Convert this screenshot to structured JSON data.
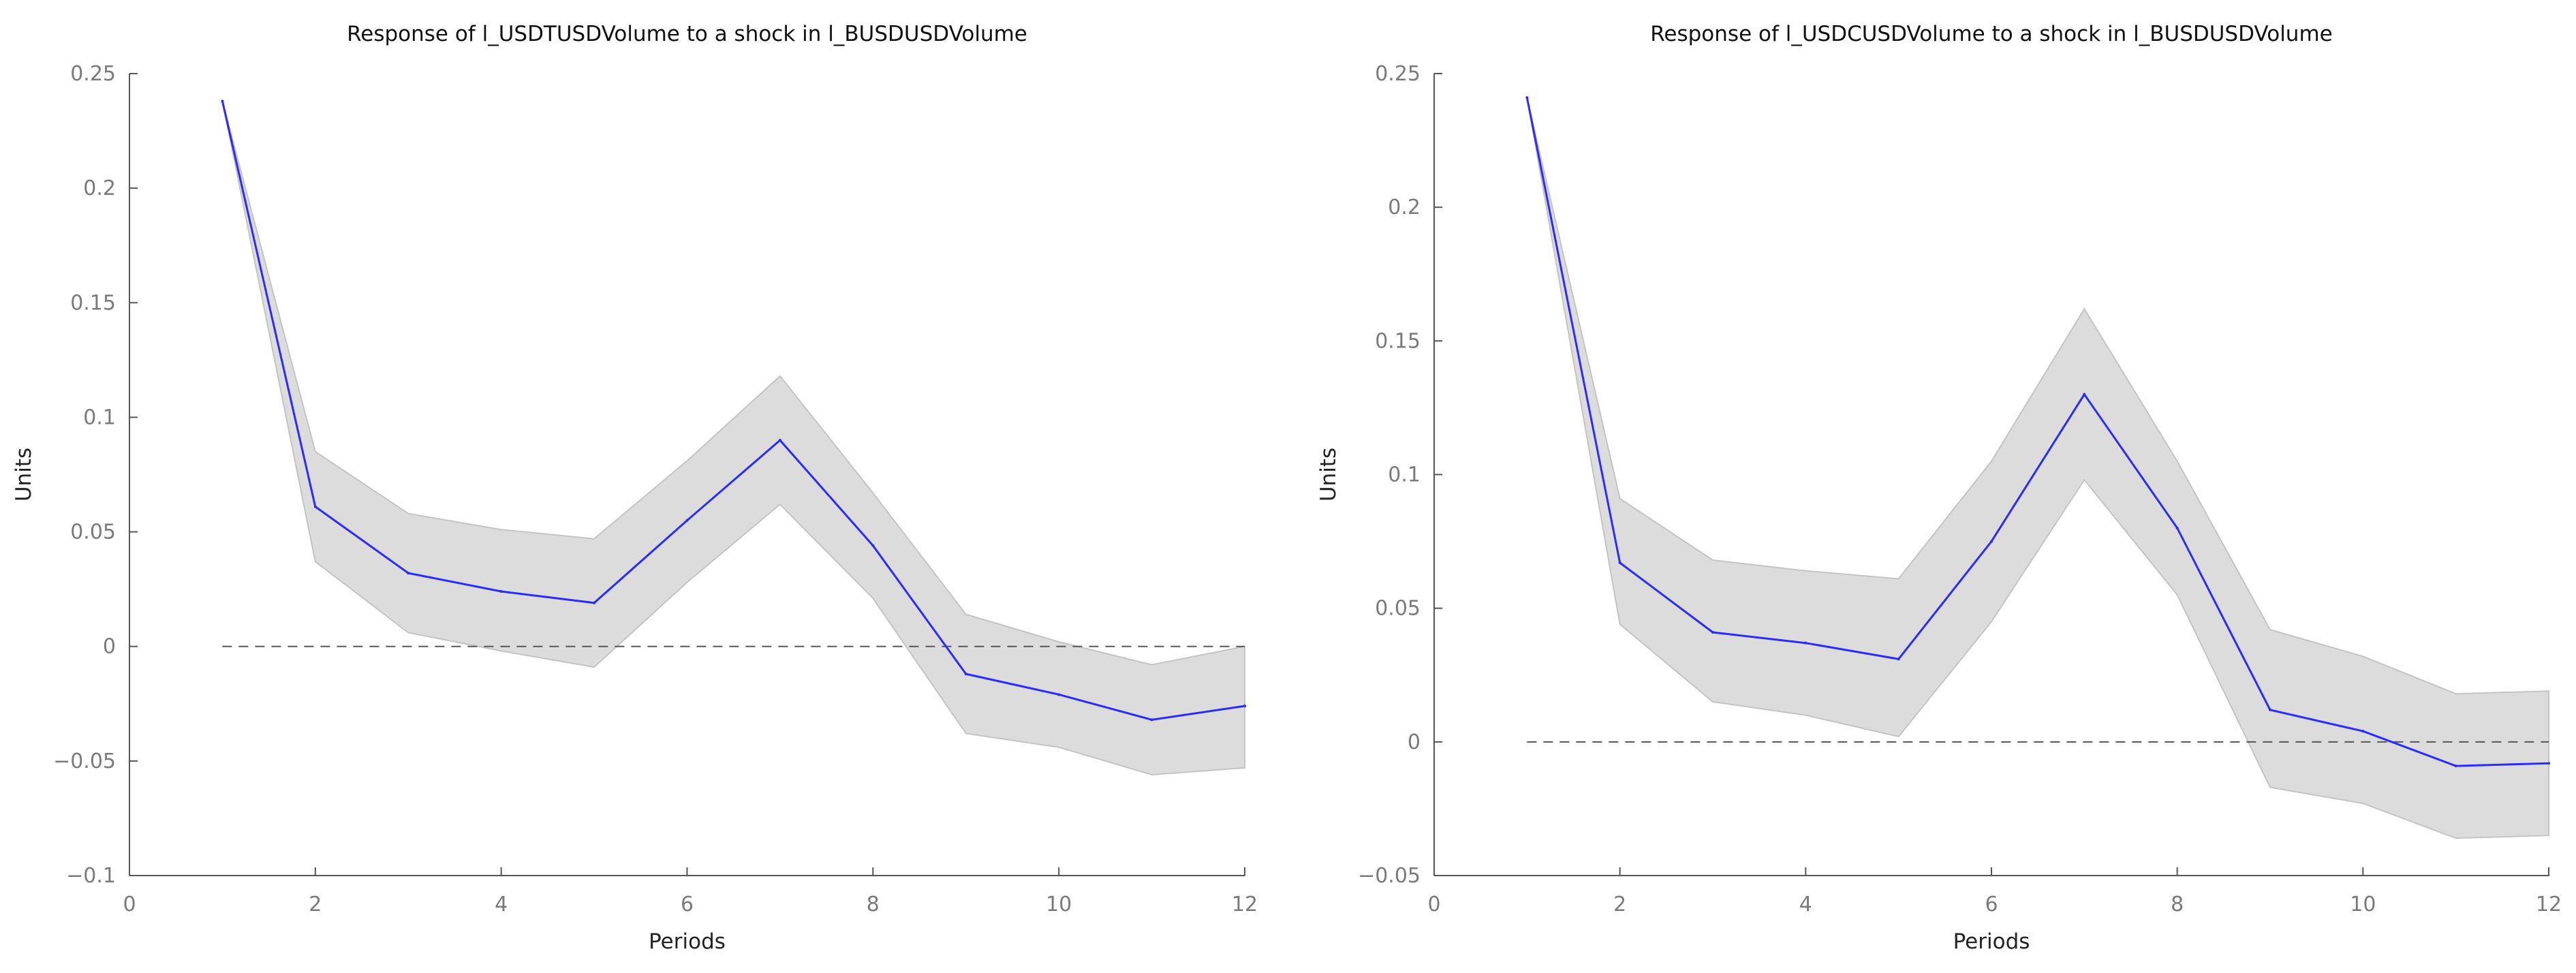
{
  "chart_data": [
    {
      "type": "line",
      "title": "Response of l_USDTUSDVolume to a shock in l_BUSDUSDVolume",
      "xlabel": "Periods",
      "ylabel": "Units",
      "xlim": [
        0,
        12
      ],
      "ylim": [
        -0.1,
        0.25
      ],
      "xticks": [
        0,
        2,
        4,
        6,
        8,
        10,
        12
      ],
      "yticks": [
        -0.1,
        -0.05,
        0,
        0.05,
        0.1,
        0.15,
        0.2,
        0.25
      ],
      "xtick_labels": [
        "0",
        "2",
        "4",
        "6",
        "8",
        "10",
        "12"
      ],
      "ytick_labels": [
        "−0.1",
        "−0.05",
        "0",
        "0.05",
        "0.1",
        "0.15",
        "0.2",
        "0.25"
      ],
      "zero_line": 0,
      "x": [
        1,
        2,
        3,
        4,
        5,
        6,
        7,
        8,
        9,
        10,
        11,
        12
      ],
      "series": [
        {
          "name": "response",
          "color": "#2b2bff",
          "values": [
            0.238,
            0.061,
            0.032,
            0.024,
            0.019,
            0.055,
            0.09,
            0.044,
            -0.012,
            -0.021,
            -0.032,
            -0.026
          ]
        },
        {
          "name": "upper",
          "values": [
            0.238,
            0.085,
            0.058,
            0.051,
            0.047,
            0.081,
            0.118,
            0.067,
            0.014,
            0.002,
            -0.008,
            0.0
          ]
        },
        {
          "name": "lower",
          "values": [
            0.238,
            0.037,
            0.006,
            -0.002,
            -0.009,
            0.028,
            0.062,
            0.021,
            -0.038,
            -0.044,
            -0.056,
            -0.053
          ]
        }
      ],
      "band_color": "#dcdcdc"
    },
    {
      "type": "line",
      "title": "Response of l_USDCUSDVolume to a shock in l_BUSDUSDVolume",
      "xlabel": "Periods",
      "ylabel": "Units",
      "xlim": [
        0,
        12
      ],
      "ylim": [
        -0.05,
        0.25
      ],
      "xticks": [
        0,
        2,
        4,
        6,
        8,
        10,
        12
      ],
      "yticks": [
        -0.05,
        0,
        0.05,
        0.1,
        0.15,
        0.2,
        0.25
      ],
      "xtick_labels": [
        "0",
        "2",
        "4",
        "6",
        "8",
        "10",
        "12"
      ],
      "ytick_labels": [
        "−0.05",
        "0",
        "0.05",
        "0.1",
        "0.15",
        "0.2",
        "0.25"
      ],
      "zero_line": 0,
      "x": [
        1,
        2,
        3,
        4,
        5,
        6,
        7,
        8,
        9,
        10,
        11,
        12
      ],
      "series": [
        {
          "name": "response",
          "color": "#2b2bff",
          "values": [
            0.241,
            0.067,
            0.041,
            0.037,
            0.031,
            0.075,
            0.13,
            0.08,
            0.012,
            0.004,
            -0.009,
            -0.008
          ]
        },
        {
          "name": "upper",
          "values": [
            0.241,
            0.091,
            0.068,
            0.064,
            0.061,
            0.105,
            0.162,
            0.105,
            0.042,
            0.032,
            0.018,
            0.019
          ]
        },
        {
          "name": "lower",
          "values": [
            0.241,
            0.044,
            0.015,
            0.01,
            0.002,
            0.045,
            0.098,
            0.055,
            -0.017,
            -0.023,
            -0.036,
            -0.035
          ]
        }
      ],
      "band_color": "#dcdcdc"
    }
  ]
}
